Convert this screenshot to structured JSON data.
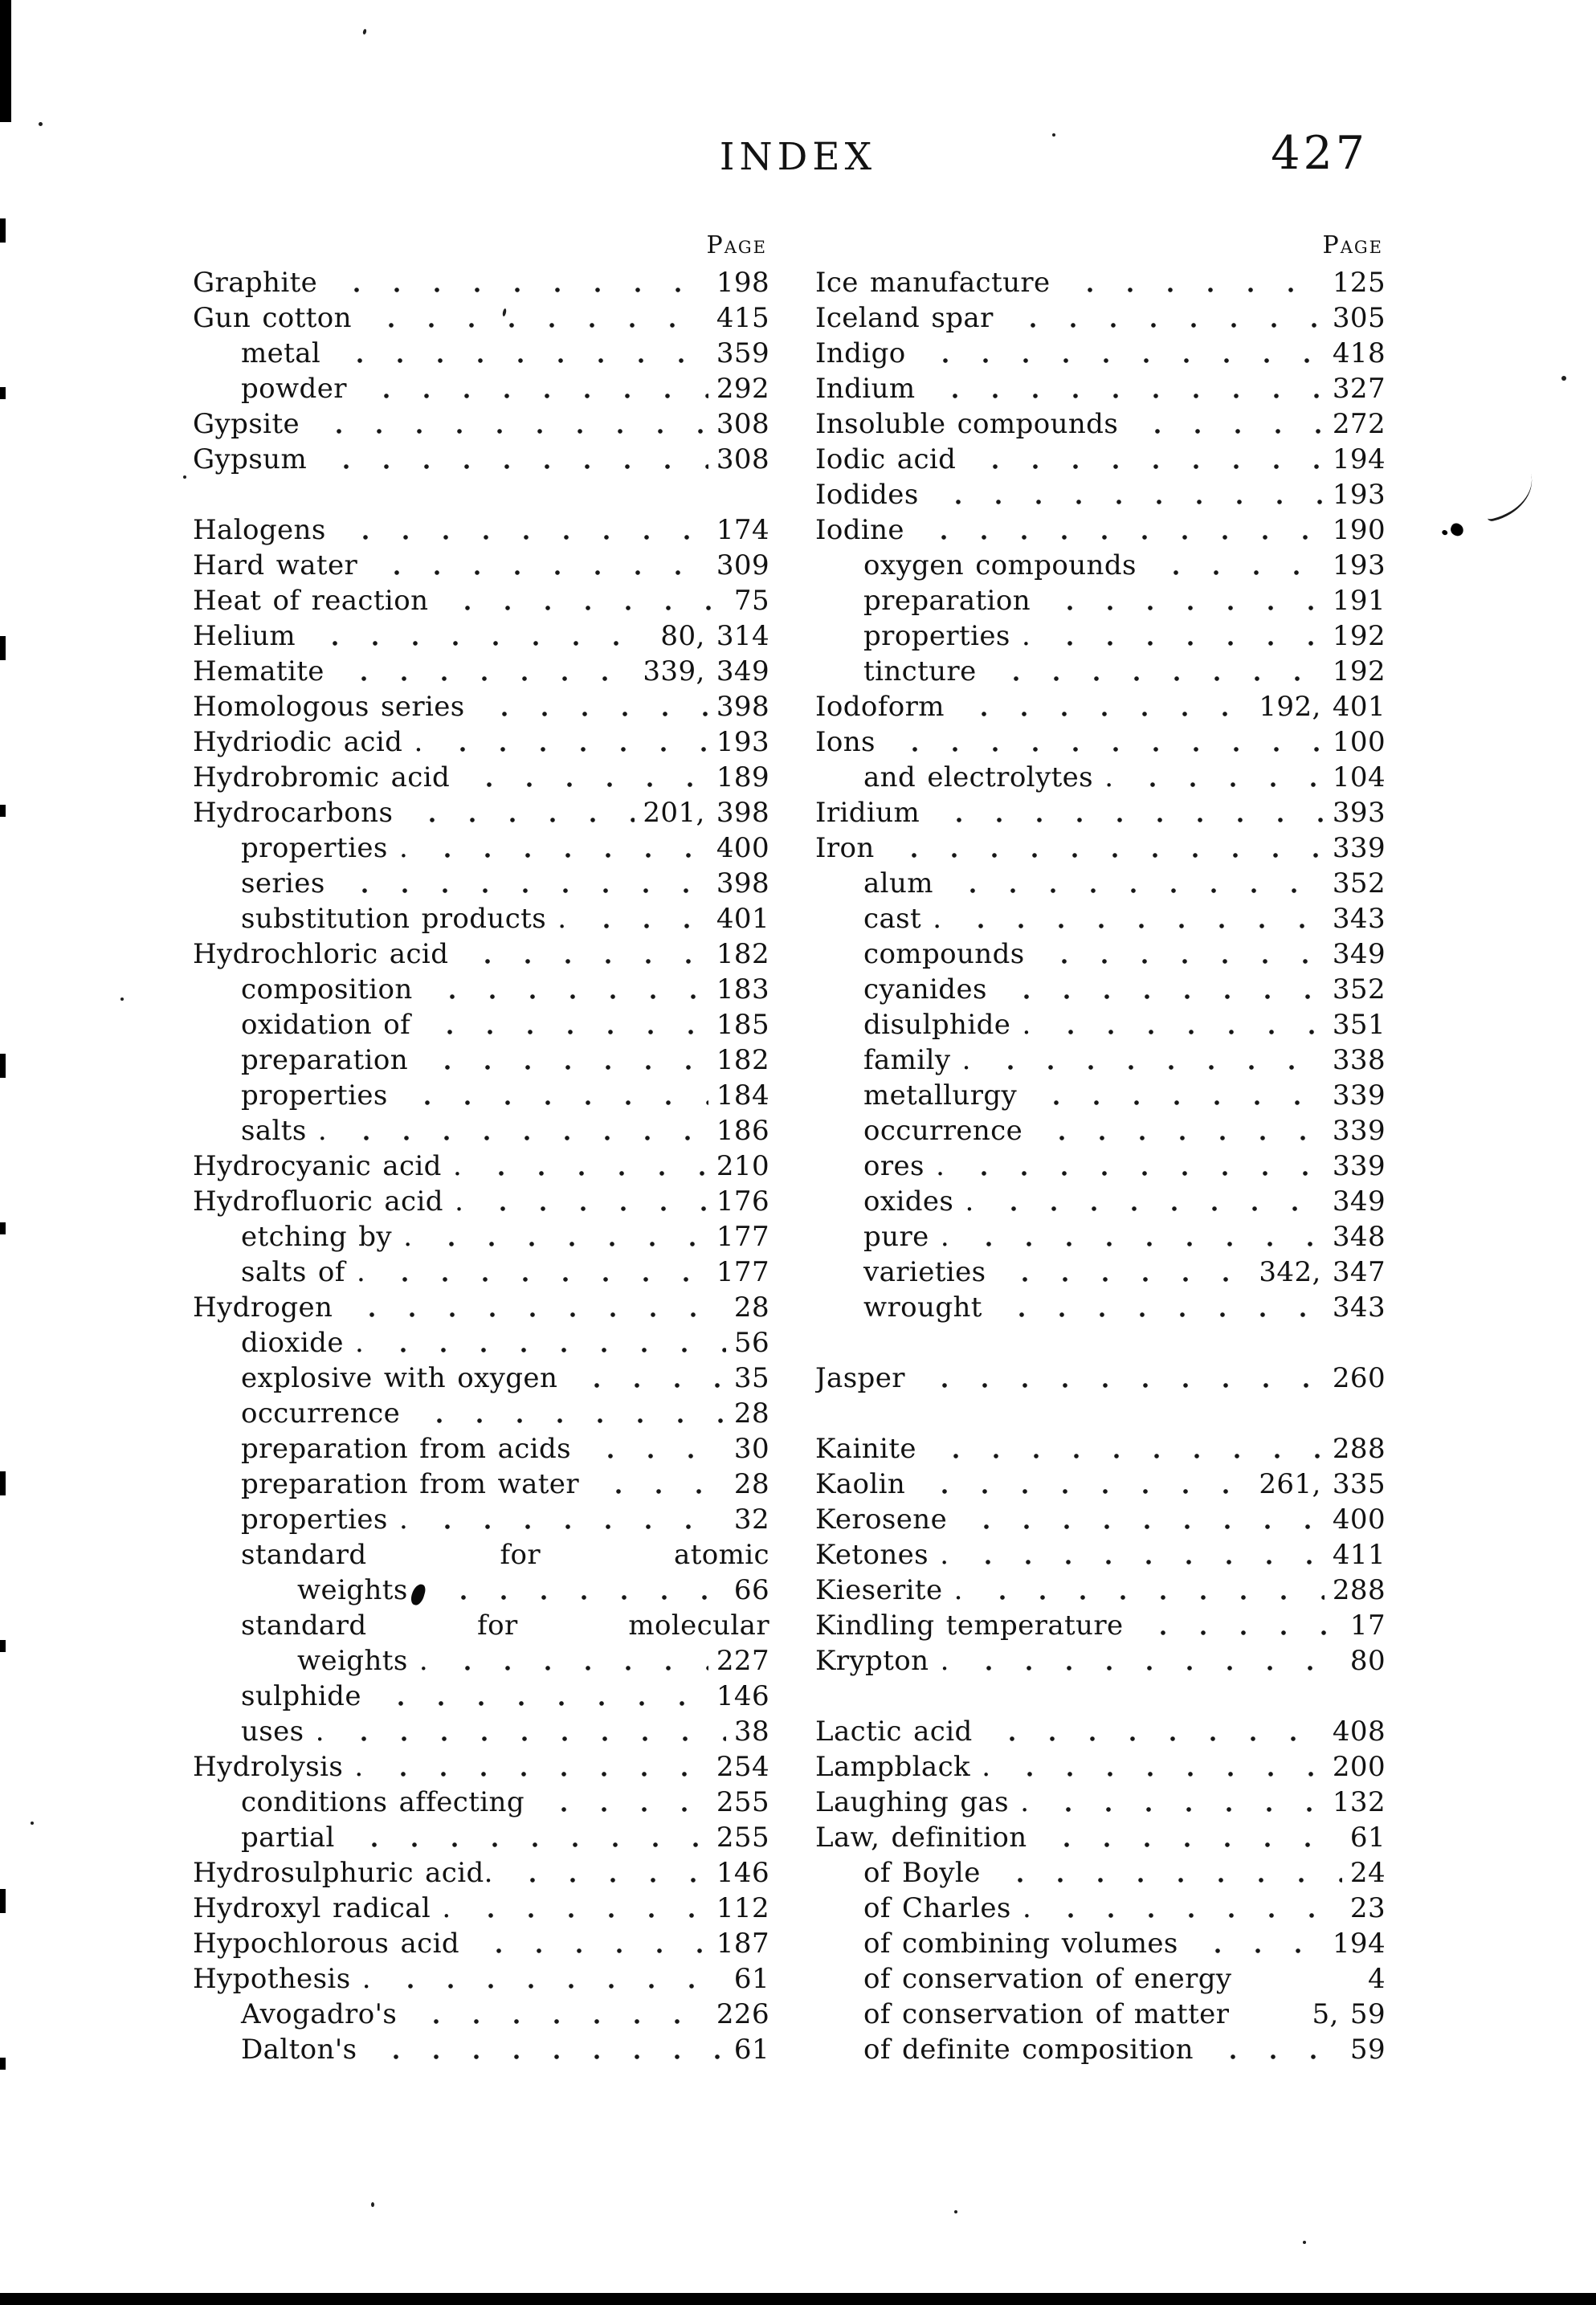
{
  "header": {
    "title": "INDEX",
    "page_number": "427"
  },
  "columns": {
    "left": {
      "page_label": "Page",
      "entries": [
        {
          "label": "Graphite",
          "indent": 0,
          "dots": true,
          "page": "198"
        },
        {
          "label": "Gun cotton",
          "indent": 0,
          "dots": true,
          "page": "415"
        },
        {
          "label": "metal",
          "indent": 1,
          "dots": true,
          "page": "359"
        },
        {
          "label": "powder",
          "indent": 1,
          "dots": true,
          "page": "292"
        },
        {
          "label": "Gypsite",
          "indent": 0,
          "dots": true,
          "page": "308"
        },
        {
          "label": "Gypsum",
          "indent": 0,
          "dots": true,
          "page": "308"
        },
        {
          "gap": true
        },
        {
          "label": "Halogens",
          "indent": 0,
          "dots": true,
          "page": "174"
        },
        {
          "label": "Hard water",
          "indent": 0,
          "dots": true,
          "page": "309"
        },
        {
          "label": "Heat of reaction",
          "indent": 0,
          "dots": true,
          "page": "75"
        },
        {
          "label": "Helium",
          "indent": 0,
          "dots": true,
          "page": "80, 314"
        },
        {
          "label": "Hematite",
          "indent": 0,
          "dots": true,
          "page": "339, 349"
        },
        {
          "label": "Homologous series",
          "indent": 0,
          "dots": true,
          "page": "398"
        },
        {
          "label": "Hydriodic acid .",
          "indent": 0,
          "dots": true,
          "page": "193"
        },
        {
          "label": "Hydrobromic acid",
          "indent": 0,
          "dots": true,
          "page": "189"
        },
        {
          "label": "Hydrocarbons",
          "indent": 0,
          "dots": true,
          "page": "201, 398"
        },
        {
          "label": "properties .",
          "indent": 1,
          "dots": true,
          "page": "400"
        },
        {
          "label": "series",
          "indent": 1,
          "dots": true,
          "page": "398"
        },
        {
          "label": "substitution products .",
          "indent": 1,
          "dots": true,
          "page": "401"
        },
        {
          "label": "Hydrochloric acid",
          "indent": 0,
          "dots": true,
          "page": "182"
        },
        {
          "label": "composition",
          "indent": 1,
          "dots": true,
          "page": "183"
        },
        {
          "label": "oxidation of",
          "indent": 1,
          "dots": true,
          "page": "185"
        },
        {
          "label": "preparation",
          "indent": 1,
          "dots": true,
          "page": "182"
        },
        {
          "label": "properties",
          "indent": 1,
          "dots": true,
          "page": "184"
        },
        {
          "label": "salts .",
          "indent": 1,
          "dots": true,
          "page": "186"
        },
        {
          "label": "Hydrocyanic acid .",
          "indent": 0,
          "dots": true,
          "page": "210"
        },
        {
          "label": "Hydrofluoric acid .",
          "indent": 0,
          "dots": true,
          "page": "176"
        },
        {
          "label": "etching by .",
          "indent": 1,
          "dots": true,
          "page": "177"
        },
        {
          "label": "salts of .",
          "indent": 1,
          "dots": true,
          "page": "177"
        },
        {
          "label": "Hydrogen",
          "indent": 0,
          "dots": true,
          "page": "28"
        },
        {
          "label": "dioxide .",
          "indent": 1,
          "dots": true,
          "page": "56"
        },
        {
          "label": "explosive with oxygen",
          "indent": 1,
          "dots": true,
          "page": "35"
        },
        {
          "label": "occurrence",
          "indent": 1,
          "dots": true,
          "page": "28"
        },
        {
          "label": "preparation from acids",
          "indent": 1,
          "dots": true,
          "page": "30"
        },
        {
          "label": "preparation from water",
          "indent": 1,
          "dots": true,
          "page": "28"
        },
        {
          "label": "properties .",
          "indent": 1,
          "dots": true,
          "page": "32"
        },
        {
          "label": "standard for atomic",
          "indent": 1,
          "justify": true,
          "dots": false,
          "page": ""
        },
        {
          "label": "weights",
          "indent": 2,
          "dots": true,
          "page": "66",
          "ink_blot": true
        },
        {
          "label": "standard for molecular",
          "indent": 1,
          "justify": true,
          "dots": false,
          "page": ""
        },
        {
          "label": "weights .",
          "indent": 2,
          "dots": true,
          "page": "227"
        },
        {
          "label": "sulphide",
          "indent": 1,
          "dots": true,
          "page": "146"
        },
        {
          "label": "uses .",
          "indent": 1,
          "dots": true,
          "page": "38"
        },
        {
          "label": "Hydrolysis .",
          "indent": 0,
          "dots": true,
          "page": "254"
        },
        {
          "label": "conditions affecting",
          "indent": 1,
          "dots": true,
          "page": "255"
        },
        {
          "label": "partial",
          "indent": 1,
          "dots": true,
          "page": "255"
        },
        {
          "label": "Hydrosulphuric acid.",
          "indent": 0,
          "dots": true,
          "page": "146"
        },
        {
          "label": "Hydroxyl radical .",
          "indent": 0,
          "dots": true,
          "page": "112"
        },
        {
          "label": "Hypochlorous acid",
          "indent": 0,
          "dots": true,
          "page": "187"
        },
        {
          "label": "Hypothesis .",
          "indent": 0,
          "dots": true,
          "page": "61"
        },
        {
          "label": "Avogadro's",
          "indent": 1,
          "dots": true,
          "page": "226"
        },
        {
          "label": "Dalton's",
          "indent": 1,
          "dots": true,
          "page": "61"
        }
      ]
    },
    "right": {
      "page_label": "Page",
      "entries": [
        {
          "label": "Ice manufacture",
          "indent": 0,
          "dots": true,
          "page": "125"
        },
        {
          "label": "Iceland spar",
          "indent": 0,
          "dots": true,
          "page": "305"
        },
        {
          "label": "Indigo",
          "indent": 0,
          "dots": true,
          "page": "418"
        },
        {
          "label": "Indium",
          "indent": 0,
          "dots": true,
          "page": "327"
        },
        {
          "label": "Insoluble compounds",
          "indent": 0,
          "dots": true,
          "page": "272"
        },
        {
          "label": "Iodic acid",
          "indent": 0,
          "dots": true,
          "page": "194"
        },
        {
          "label": "Iodides",
          "indent": 0,
          "dots": true,
          "page": "193"
        },
        {
          "label": "Iodine",
          "indent": 0,
          "dots": true,
          "page": "190"
        },
        {
          "label": "oxygen compounds",
          "indent": 1,
          "dots": true,
          "page": "193"
        },
        {
          "label": "preparation",
          "indent": 1,
          "dots": true,
          "page": "191"
        },
        {
          "label": "properties .",
          "indent": 1,
          "dots": true,
          "page": "192"
        },
        {
          "label": "tincture",
          "indent": 1,
          "dots": true,
          "page": "192"
        },
        {
          "label": "Iodoform",
          "indent": 0,
          "dots": true,
          "page": "192, 401"
        },
        {
          "label": "Ions",
          "indent": 0,
          "dots": true,
          "page": "100"
        },
        {
          "label": "and electrolytes .",
          "indent": 1,
          "dots": true,
          "page": "104"
        },
        {
          "label": "Iridium",
          "indent": 0,
          "dots": true,
          "page": "393"
        },
        {
          "label": "Iron",
          "indent": 0,
          "dots": true,
          "page": "339"
        },
        {
          "label": "alum",
          "indent": 1,
          "dots": true,
          "page": "352"
        },
        {
          "label": "cast .",
          "indent": 1,
          "dots": true,
          "page": "343"
        },
        {
          "label": "compounds",
          "indent": 1,
          "dots": true,
          "page": "349"
        },
        {
          "label": "cyanides",
          "indent": 1,
          "dots": true,
          "page": "352"
        },
        {
          "label": "disulphide .",
          "indent": 1,
          "dots": true,
          "page": "351"
        },
        {
          "label": "family .",
          "indent": 1,
          "dots": true,
          "page": "338"
        },
        {
          "label": "metallurgy",
          "indent": 1,
          "dots": true,
          "page": "339"
        },
        {
          "label": "occurrence",
          "indent": 1,
          "dots": true,
          "page": "339"
        },
        {
          "label": "ores .",
          "indent": 1,
          "dots": true,
          "page": "339"
        },
        {
          "label": "oxides .",
          "indent": 1,
          "dots": true,
          "page": "349"
        },
        {
          "label": "pure .",
          "indent": 1,
          "dots": true,
          "page": "348"
        },
        {
          "label": "varieties",
          "indent": 1,
          "dots": true,
          "page": "342, 347"
        },
        {
          "label": "wrought",
          "indent": 1,
          "dots": true,
          "page": "343"
        },
        {
          "gap": true
        },
        {
          "label": "Jasper",
          "indent": 0,
          "dots": true,
          "page": "260"
        },
        {
          "gap": true
        },
        {
          "label": "Kainite",
          "indent": 0,
          "dots": true,
          "page": "288"
        },
        {
          "label": "Kaolin",
          "indent": 0,
          "dots": true,
          "page": "261, 335"
        },
        {
          "label": "Kerosene",
          "indent": 0,
          "dots": true,
          "page": "400"
        },
        {
          "label": "Ketones .",
          "indent": 0,
          "dots": true,
          "page": "411"
        },
        {
          "label": "Kieserite .",
          "indent": 0,
          "dots": true,
          "page": "288"
        },
        {
          "label": "Kindling temperature",
          "indent": 0,
          "dots": true,
          "page": "17"
        },
        {
          "label": "Krypton .",
          "indent": 0,
          "dots": true,
          "page": "80"
        },
        {
          "gap": true
        },
        {
          "label": "Lactic acid",
          "indent": 0,
          "dots": true,
          "page": "408"
        },
        {
          "label": "Lampblack .",
          "indent": 0,
          "dots": true,
          "page": "200"
        },
        {
          "label": "Laughing gas .",
          "indent": 0,
          "dots": true,
          "page": "132"
        },
        {
          "label": "Law, definition",
          "indent": 0,
          "dots": true,
          "page": "61"
        },
        {
          "label": "of Boyle",
          "indent": 1,
          "dots": true,
          "page": "24"
        },
        {
          "label": "of Charles .",
          "indent": 1,
          "dots": true,
          "page": "23"
        },
        {
          "label": "of combining volumes",
          "indent": 1,
          "dots": true,
          "page": "194"
        },
        {
          "label": "of conservation of energy",
          "indent": 1,
          "dots": false,
          "page": "4"
        },
        {
          "label": "of conservation of matter",
          "indent": 1,
          "dots": false,
          "page": "5, 59"
        },
        {
          "label": "of definite composition",
          "indent": 1,
          "dots": true,
          "page": "59"
        }
      ]
    }
  }
}
